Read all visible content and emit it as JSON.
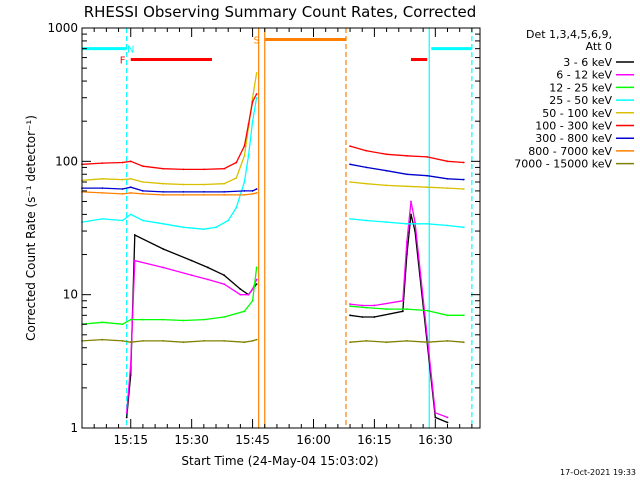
{
  "chart_data": {
    "type": "line",
    "title": "RHESSI Observing Summary Count Rates, Corrected",
    "xlabel": "Start Time (24-May-04 15:03:02)",
    "ylabel": "Corrected Count Rate (s⁻¹ detector⁻¹)",
    "yscale": "log",
    "ylim": [
      1,
      1000
    ],
    "xlim_minutes": [
      0,
      98
    ],
    "x_tick_labels": [
      "15:15",
      "15:30",
      "15:45",
      "16:00",
      "16:15",
      "16:30"
    ],
    "x_tick_minutes": [
      12,
      27,
      42,
      57,
      72,
      87
    ],
    "y_tick_labels": [
      "1",
      "10",
      "100",
      "1000"
    ],
    "y_tick_values": [
      1,
      10,
      100,
      1000
    ],
    "legend_position": "right",
    "legend_header": [
      "Det 1,3,4,5,6,9,",
      "Att 0"
    ],
    "footer": "17-Oct-2021 19:33",
    "series": [
      {
        "name": "3 - 6 keV",
        "color": "#000000",
        "x": [
          11,
          12,
          13,
          20,
          27,
          31,
          35,
          39,
          41,
          42,
          43,
          66,
          69,
          72,
          79,
          80,
          81,
          82,
          87,
          90
        ],
        "y": [
          1.2,
          2.5,
          28,
          22,
          18,
          16,
          14,
          11,
          10,
          11,
          12,
          7.0,
          6.8,
          6.8,
          7.5,
          20,
          40,
          30,
          1.2,
          1.1
        ]
      },
      {
        "name": "6 - 12 keV",
        "color": "#ff00ff",
        "x": [
          11,
          12,
          13,
          20,
          27,
          31,
          35,
          39,
          41,
          42,
          43,
          66,
          69,
          72,
          79,
          80,
          81,
          82,
          87,
          90
        ],
        "y": [
          1.3,
          3.0,
          18,
          16,
          14,
          13,
          12,
          10,
          10,
          11,
          13,
          8.5,
          8.3,
          8.3,
          9.0,
          25,
          50,
          35,
          1.3,
          1.2
        ]
      },
      {
        "name": "12 - 25 keV",
        "color": "#00ff00",
        "x": [
          0,
          5,
          10,
          12,
          15,
          20,
          25,
          30,
          35,
          40,
          42,
          43,
          66,
          70,
          75,
          80,
          85,
          90,
          94
        ],
        "y": [
          6.0,
          6.2,
          6.0,
          6.5,
          6.5,
          6.5,
          6.4,
          6.5,
          6.8,
          7.5,
          9,
          16,
          8.2,
          8.0,
          7.8,
          7.8,
          7.6,
          7.0,
          7.0
        ]
      },
      {
        "name": "25 - 50 keV",
        "color": "#00ffff",
        "x": [
          0,
          5,
          10,
          12,
          15,
          20,
          25,
          30,
          33,
          36,
          38,
          40,
          41,
          42,
          43,
          66,
          70,
          75,
          80,
          85,
          90,
          94
        ],
        "y": [
          35,
          37,
          36,
          40,
          36,
          34,
          32,
          31,
          32,
          36,
          45,
          70,
          110,
          200,
          300,
          37,
          36,
          35,
          34,
          34,
          33,
          32
        ]
      },
      {
        "name": "50 - 100 keV",
        "color": "#d8c000",
        "x": [
          0,
          5,
          10,
          12,
          15,
          20,
          25,
          30,
          35,
          38,
          40,
          41,
          42,
          43,
          66,
          70,
          75,
          80,
          85,
          90,
          94
        ],
        "y": [
          72,
          74,
          73,
          74,
          70,
          68,
          67,
          67,
          68,
          75,
          110,
          180,
          300,
          460,
          70,
          68,
          66,
          65,
          64,
          63,
          62
        ]
      },
      {
        "name": "100 - 300 keV",
        "color": "#ff0000",
        "x": [
          0,
          5,
          10,
          12,
          15,
          20,
          25,
          30,
          35,
          38,
          40,
          41,
          42,
          43,
          66,
          70,
          75,
          80,
          85,
          90,
          94
        ],
        "y": [
          95,
          97,
          98,
          100,
          92,
          88,
          87,
          87,
          88,
          98,
          130,
          190,
          280,
          320,
          130,
          120,
          113,
          110,
          108,
          100,
          98
        ]
      },
      {
        "name": "300 - 800 keV",
        "color": "#0000cc",
        "x": [
          0,
          5,
          10,
          12,
          15,
          20,
          25,
          30,
          35,
          40,
          42,
          43,
          66,
          70,
          75,
          80,
          85,
          90,
          94
        ],
        "y": [
          63,
          63,
          62,
          64,
          60,
          59,
          59,
          59,
          59,
          60,
          60,
          62,
          95,
          90,
          85,
          80,
          78,
          74,
          73
        ]
      },
      {
        "name": "800 - 7000 keV",
        "color": "#ff8000",
        "x": [
          0,
          5,
          10,
          12,
          15,
          20,
          25,
          30,
          35,
          40,
          42,
          43
        ],
        "y": [
          59,
          58,
          57,
          58,
          57,
          56,
          56,
          56,
          56,
          56,
          57,
          58
        ]
      },
      {
        "name": "7000 - 15000 keV",
        "color": "#808000",
        "x": [
          0,
          5,
          10,
          12,
          15,
          20,
          25,
          30,
          35,
          40,
          42,
          43,
          66,
          70,
          75,
          80,
          85,
          90,
          94
        ],
        "y": [
          4.5,
          4.6,
          4.5,
          4.4,
          4.5,
          4.5,
          4.4,
          4.5,
          4.5,
          4.4,
          4.5,
          4.6,
          4.4,
          4.5,
          4.4,
          4.5,
          4.4,
          4.5,
          4.4
        ]
      }
    ],
    "flags": [
      {
        "label": "",
        "kind": "bar",
        "color": "#00ffff",
        "y": 700,
        "from": 0,
        "to": 11
      },
      {
        "label": "N",
        "kind": "marker",
        "color": "#00ffff",
        "y": 700,
        "at": 12
      },
      {
        "label": "F",
        "kind": "marker",
        "color": "#ff0000",
        "y": 580,
        "at": 10
      },
      {
        "label": "",
        "kind": "bar",
        "color": "#ff0000",
        "y": 580,
        "from": 12,
        "to": 32
      },
      {
        "label": "S",
        "kind": "marker",
        "color": "#ff8000",
        "y": 820,
        "at": 43
      },
      {
        "label": "",
        "kind": "bar",
        "color": "#ff8000",
        "y": 820,
        "from": 45,
        "to": 65
      },
      {
        "label": "",
        "kind": "bar",
        "color": "#ff0000",
        "y": 580,
        "from": 81,
        "to": 85
      },
      {
        "label": "",
        "kind": "bar",
        "color": "#00ffff",
        "y": 700,
        "from": 86,
        "to": 96
      }
    ],
    "vertical_lines": [
      {
        "at": 11,
        "color": "#00ffff",
        "style": "dashed"
      },
      {
        "at": 43.5,
        "color": "#ff8000",
        "style": "solid"
      },
      {
        "at": 45,
        "color": "#ff8000",
        "style": "solid"
      },
      {
        "at": 65,
        "color": "#ff8000",
        "style": "dashed"
      },
      {
        "at": 85.5,
        "color": "#00ffff",
        "style": "solid"
      },
      {
        "at": 96,
        "color": "#00ffff",
        "style": "dashed"
      }
    ]
  }
}
